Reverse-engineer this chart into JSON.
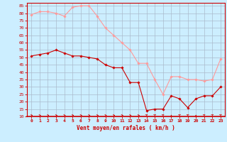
{
  "x": [
    0,
    1,
    2,
    3,
    4,
    5,
    6,
    7,
    8,
    9,
    10,
    11,
    12,
    13,
    14,
    15,
    16,
    17,
    18,
    19,
    20,
    21,
    22,
    23
  ],
  "wind_avg": [
    51,
    52,
    53,
    55,
    53,
    51,
    51,
    50,
    49,
    45,
    43,
    43,
    33,
    33,
    14,
    15,
    15,
    24,
    22,
    16,
    22,
    24,
    24,
    30
  ],
  "wind_gust": [
    79,
    81,
    81,
    80,
    78,
    84,
    85,
    85,
    78,
    70,
    65,
    60,
    55,
    46,
    46,
    35,
    25,
    37,
    37,
    35,
    35,
    34,
    35,
    49
  ],
  "avg_color": "#cc0000",
  "gust_color": "#ff9999",
  "bg_color": "#cceeff",
  "grid_color": "#aabbcc",
  "xlabel": "Vent moyen/en rafales ( km/h )",
  "xlabel_color": "#cc0000",
  "tick_color": "#cc0000",
  "axis_color": "#cc0000",
  "ylim": [
    10,
    87
  ],
  "xlim": [
    -0.5,
    23.5
  ],
  "yticks": [
    10,
    15,
    20,
    25,
    30,
    35,
    40,
    45,
    50,
    55,
    60,
    65,
    70,
    75,
    80,
    85
  ],
  "ytick_labels": [
    "10",
    "15",
    "20",
    "25",
    "30",
    "35",
    "40",
    "45",
    "50",
    "55",
    "60",
    "65",
    "70",
    "75",
    "80",
    "85"
  ],
  "xtick_labels": [
    "0",
    "1",
    "2",
    "3",
    "4",
    "5",
    "6",
    "7",
    "8",
    "9",
    "10",
    "11",
    "12",
    "13",
    "14",
    "15",
    "16",
    "17",
    "18",
    "19",
    "20",
    "21",
    "22",
    "23"
  ]
}
